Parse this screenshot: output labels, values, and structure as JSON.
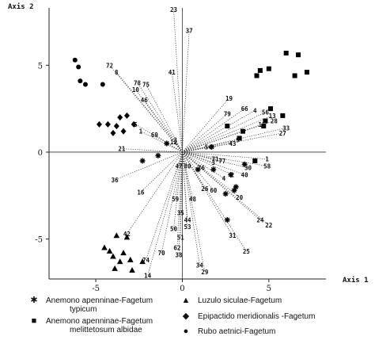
{
  "chart_data": {
    "type": "scatter",
    "xlabel": "Axis 1",
    "ylabel": "Axis 2",
    "xlim": [
      -7.7,
      8.3
    ],
    "ylim": [
      -7.3,
      8.3
    ],
    "x_ticks": [
      -5,
      0,
      5
    ],
    "y_ticks": [
      -5,
      0,
      5
    ],
    "series": [
      {
        "name": "Anemono apenninae-Fagetum typicum",
        "marker": "asterisk",
        "points": [
          [
            -2.3,
            -0.5
          ],
          [
            -1.4,
            -0.2
          ],
          [
            0.9,
            -1.0
          ],
          [
            1.8,
            -1.0
          ],
          [
            2.8,
            -1.3
          ],
          [
            3.0,
            -2.2
          ],
          [
            2.5,
            -2.4
          ],
          [
            3.1,
            -2.0
          ],
          [
            2.6,
            -3.9
          ],
          [
            1.7,
            0.3
          ],
          [
            -0.9,
            0.5
          ],
          [
            3.6,
            -0.7
          ]
        ]
      },
      {
        "name": "Anemono apenninae-Fagetum melittetosum albidae",
        "marker": "square",
        "points": [
          [
            4.5,
            4.7
          ],
          [
            5.0,
            4.8
          ],
          [
            6.0,
            5.7
          ],
          [
            6.7,
            5.6
          ],
          [
            7.2,
            4.6
          ],
          [
            6.5,
            4.4
          ],
          [
            4.3,
            4.4
          ],
          [
            5.1,
            2.5
          ],
          [
            5.8,
            2.1
          ],
          [
            4.8,
            1.8
          ],
          [
            4.7,
            1.5
          ],
          [
            3.5,
            1.2
          ],
          [
            2.6,
            1.5
          ],
          [
            3.3,
            0.8
          ],
          [
            4.2,
            -0.5
          ]
        ]
      },
      {
        "name": "Luzulo siculae-Fagetum",
        "marker": "triangle",
        "points": [
          [
            -3.8,
            -4.8
          ],
          [
            -3.2,
            -4.9
          ],
          [
            -3.4,
            -5.8
          ],
          [
            -3.6,
            -6.3
          ],
          [
            -4.2,
            -5.7
          ],
          [
            -4.5,
            -5.5
          ],
          [
            -4.0,
            -6.0
          ],
          [
            -3.9,
            -6.7
          ],
          [
            -3.0,
            -6.2
          ],
          [
            -2.3,
            -6.3
          ],
          [
            -2.9,
            -6.8
          ]
        ]
      },
      {
        "name": "Epipactido meridionalis -Fagetum",
        "marker": "diamond",
        "points": [
          [
            -4.8,
            1.6
          ],
          [
            -4.3,
            1.6
          ],
          [
            -4.0,
            1.1
          ],
          [
            -3.8,
            1.5
          ],
          [
            -3.6,
            2.0
          ],
          [
            -3.2,
            2.1
          ],
          [
            -2.8,
            1.6
          ],
          [
            -3.4,
            1.2
          ]
        ]
      },
      {
        "name": "Rubo aetnici-Fagetum",
        "marker": "circle",
        "points": [
          [
            -6.2,
            5.3
          ],
          [
            -6.0,
            4.9
          ],
          [
            -5.9,
            4.1
          ],
          [
            -5.6,
            3.9
          ],
          [
            -4.6,
            3.9
          ]
        ]
      }
    ],
    "vectors": [
      {
        "label": "23",
        "x": -0.5,
        "y": 8.2
      },
      {
        "label": "37",
        "x": 0.4,
        "y": 7.0
      },
      {
        "label": "41",
        "x": -0.6,
        "y": 4.6
      },
      {
        "label": "72",
        "x": -4.2,
        "y": 5.0
      },
      {
        "label": "8",
        "x": -3.8,
        "y": 4.6
      },
      {
        "label": "78",
        "x": -2.6,
        "y": 4.0
      },
      {
        "label": "75",
        "x": -2.1,
        "y": 3.9
      },
      {
        "label": "10",
        "x": -2.7,
        "y": 3.6
      },
      {
        "label": "46",
        "x": -2.2,
        "y": 3.0
      },
      {
        "label": "5",
        "x": -2.7,
        "y": 1.6
      },
      {
        "label": "1",
        "x": -2.4,
        "y": 1.2
      },
      {
        "label": "69",
        "x": -1.6,
        "y": 1.0
      },
      {
        "label": "21",
        "x": -3.5,
        "y": 0.2
      },
      {
        "label": "12",
        "x": -0.5,
        "y": 0.6
      },
      {
        "label": "36",
        "x": -3.9,
        "y": -1.6
      },
      {
        "label": "16",
        "x": -2.4,
        "y": -2.3
      },
      {
        "label": "42",
        "x": -3.2,
        "y": -4.7
      },
      {
        "label": "74",
        "x": -2.1,
        "y": -6.2
      },
      {
        "label": "14",
        "x": -2.0,
        "y": -7.1
      },
      {
        "label": "70",
        "x": -1.2,
        "y": -5.8
      },
      {
        "label": "38",
        "x": -0.2,
        "y": -5.9
      },
      {
        "label": "62",
        "x": -0.3,
        "y": -5.5
      },
      {
        "label": "51",
        "x": -0.1,
        "y": -4.9
      },
      {
        "label": "50",
        "x": -0.5,
        "y": -4.4
      },
      {
        "label": "53",
        "x": 0.3,
        "y": -4.3
      },
      {
        "label": "44",
        "x": 0.3,
        "y": -3.9
      },
      {
        "label": "35",
        "x": -0.1,
        "y": -3.5
      },
      {
        "label": "59",
        "x": -0.4,
        "y": -2.7
      },
      {
        "label": "48",
        "x": 0.6,
        "y": -2.7
      },
      {
        "label": "34",
        "x": 1.0,
        "y": -6.5
      },
      {
        "label": "29",
        "x": 1.3,
        "y": -6.9
      },
      {
        "label": "25",
        "x": 3.7,
        "y": -5.7
      },
      {
        "label": "31",
        "x": 2.9,
        "y": -4.8
      },
      {
        "label": "24",
        "x": 4.5,
        "y": -3.9
      },
      {
        "label": "22",
        "x": 5.0,
        "y": -4.2
      },
      {
        "label": "20",
        "x": 3.3,
        "y": -2.6
      },
      {
        "label": "60",
        "x": 1.8,
        "y": -2.2
      },
      {
        "label": "26",
        "x": 1.3,
        "y": -2.1
      },
      {
        "label": "19",
        "x": 2.7,
        "y": 3.1
      },
      {
        "label": "66",
        "x": 3.6,
        "y": 2.5
      },
      {
        "label": "4",
        "x": 4.2,
        "y": 2.4
      },
      {
        "label": "56",
        "x": 4.8,
        "y": 2.3
      },
      {
        "label": "79",
        "x": 2.6,
        "y": 2.2
      },
      {
        "label": "13",
        "x": 5.2,
        "y": 2.1
      },
      {
        "label": "28",
        "x": 5.3,
        "y": 1.8
      },
      {
        "label": "15",
        "x": 4.6,
        "y": 1.6
      },
      {
        "label": "33",
        "x": 6.0,
        "y": 1.4
      },
      {
        "label": "27",
        "x": 5.8,
        "y": 1.1
      },
      {
        "label": "43",
        "x": 2.9,
        "y": 0.5
      },
      {
        "label": "58",
        "x": 4.9,
        "y": -0.8
      },
      {
        "label": "1",
        "x": 4.9,
        "y": -0.4
      },
      {
        "label": "30",
        "x": 3.8,
        "y": -0.9
      },
      {
        "label": "40",
        "x": 3.6,
        "y": -1.3
      },
      {
        "label": "4",
        "x": 2.4,
        "y": -1.5
      },
      {
        "label": "2",
        "x": 2.9,
        "y": -1.3
      },
      {
        "label": "71",
        "x": 1.9,
        "y": -0.4
      },
      {
        "label": "3",
        "x": 1.8,
        "y": -0.6
      },
      {
        "label": "9",
        "x": 3.2,
        "y": 0.7
      },
      {
        "label": "76",
        "x": 1.1,
        "y": -0.9
      },
      {
        "label": "77",
        "x": 2.3,
        "y": -0.5
      },
      {
        "label": "47",
        "x": -0.2,
        "y": -0.8
      },
      {
        "label": "80",
        "x": 0.3,
        "y": -0.8
      },
      {
        "label": "3",
        "x": -0.4,
        "y": 0.7
      },
      {
        "label": "54",
        "x": 1.5,
        "y": 0.3
      }
    ]
  },
  "axis_labels": {
    "x": "Axis 1",
    "y": "Axis 2"
  },
  "legend": [
    {
      "symbol": "✱",
      "line1": "Anemono apenninae-Fagetum",
      "line2": "typicum"
    },
    {
      "symbol": "■",
      "line1": "Anemono apenninae-Fagetum",
      "line2": "melittetosum albidae"
    },
    {
      "symbol": "▲",
      "line1": "Luzulo siculae-Fagetum",
      "line2": ""
    },
    {
      "symbol": "◆",
      "line1": "Epipactido meridionalis -Fagetum",
      "line2": ""
    },
    {
      "symbol": "●",
      "line1": "Rubo aetnici-Fagetum",
      "line2": ""
    }
  ]
}
